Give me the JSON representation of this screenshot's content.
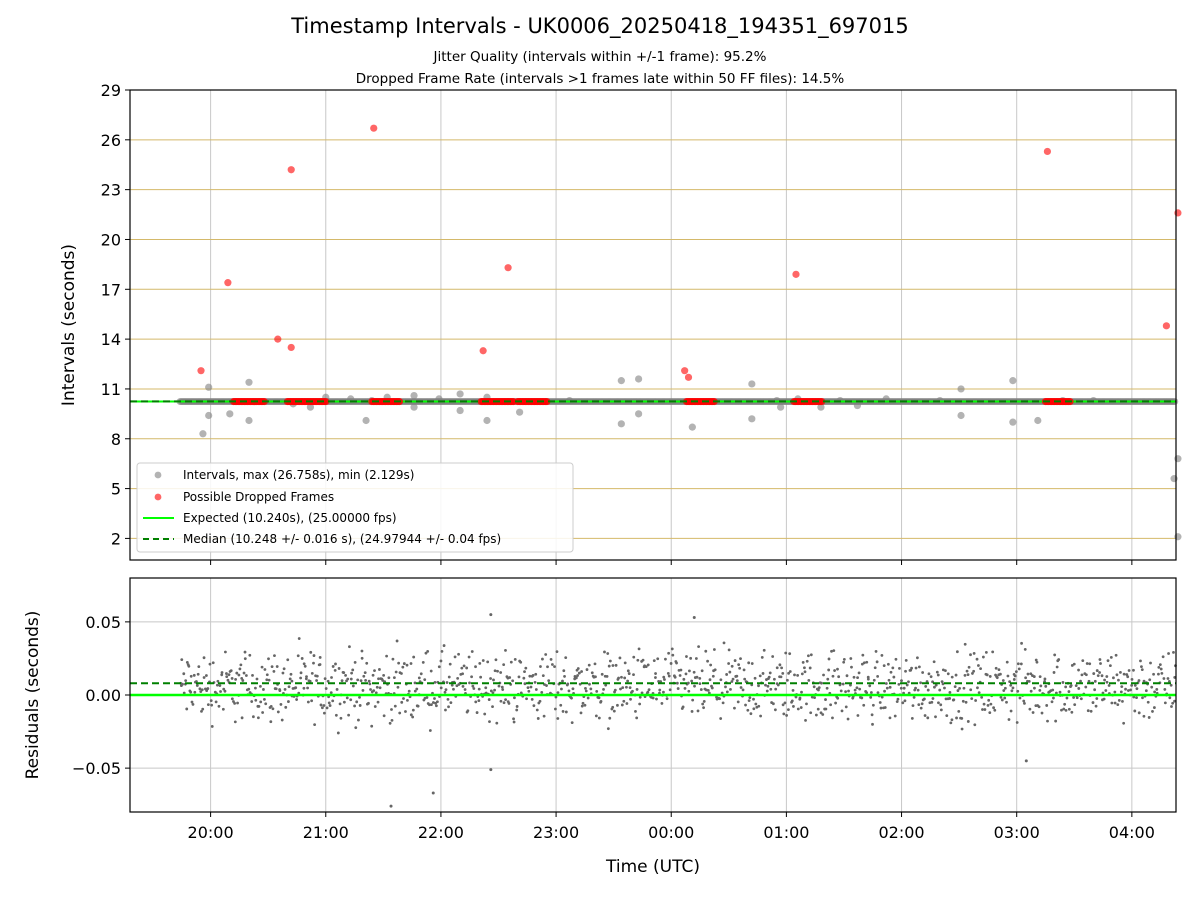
{
  "title": "Timestamp Intervals - UK0006_20250418_194351_697015",
  "subtitle_lines": [
    "Jitter Quality (intervals within +/-1 frame): 95.2%",
    "Dropped Frame Rate (intervals >1 frames late within 50 FF files): 14.5%"
  ],
  "colors": {
    "intervals": "#808080",
    "dropped": "#ff0000",
    "expected": "#00ff00",
    "median": "#008000",
    "hgrid_top": "#d4b96a",
    "vgrid": "#c8c8c8",
    "residual_points": "#666666"
  },
  "chart_data": [
    {
      "type": "scatter",
      "panel": "intervals",
      "xlabel": "",
      "ylabel": "Intervals (seconds)",
      "ylim": [
        0.7,
        29
      ],
      "yticks": [
        2,
        5,
        8,
        11,
        14,
        17,
        20,
        23,
        26,
        29
      ],
      "ytick_labels": [
        "2",
        "5",
        "8",
        "11",
        "14",
        "17",
        "20",
        "23",
        "26",
        "29"
      ],
      "xlim": [
        "19:18",
        "04:23"
      ],
      "xticks": [
        "20:00",
        "21:00",
        "22:00",
        "23:00",
        "00:00",
        "01:00",
        "02:00",
        "03:00",
        "04:00"
      ],
      "grid": "both",
      "legend_placement": "lower-left",
      "series": [
        {
          "name": "Intervals, max (26.758s), min (2.129s)",
          "kind": "points",
          "baseline_span": [
            "19:44",
            "04:23"
          ],
          "baseline_value": 10.24,
          "points": [
            [
              "19:56",
              8.3
            ],
            [
              "19:59",
              9.4
            ],
            [
              "19:59",
              11.1
            ],
            [
              "20:10",
              9.5
            ],
            [
              "20:20",
              9.1
            ],
            [
              "20:20",
              11.4
            ],
            [
              "20:43",
              10.1
            ],
            [
              "20:52",
              9.9
            ],
            [
              "21:00",
              10.5
            ],
            [
              "21:13",
              10.4
            ],
            [
              "21:21",
              9.1
            ],
            [
              "21:24",
              10.3
            ],
            [
              "21:32",
              10.5
            ],
            [
              "21:46",
              9.9
            ],
            [
              "21:46",
              10.6
            ],
            [
              "21:59",
              10.4
            ],
            [
              "22:10",
              9.7
            ],
            [
              "22:10",
              10.7
            ],
            [
              "22:24",
              9.1
            ],
            [
              "22:24",
              10.5
            ],
            [
              "22:41",
              9.6
            ],
            [
              "23:07",
              10.3
            ],
            [
              "23:34",
              11.5
            ],
            [
              "23:34",
              8.9
            ],
            [
              "23:43",
              11.6
            ],
            [
              "23:43",
              9.5
            ],
            [
              "00:11",
              8.7
            ],
            [
              "00:42",
              9.2
            ],
            [
              "00:42",
              11.3
            ],
            [
              "00:55",
              10.3
            ],
            [
              "00:57",
              9.9
            ],
            [
              "01:06",
              10.4
            ],
            [
              "01:18",
              9.9
            ],
            [
              "01:28",
              10.3
            ],
            [
              "01:37",
              10.0
            ],
            [
              "01:52",
              10.4
            ],
            [
              "02:20",
              10.3
            ],
            [
              "02:31",
              9.4
            ],
            [
              "02:31",
              11.0
            ],
            [
              "02:58",
              9.0
            ],
            [
              "02:58",
              11.5
            ],
            [
              "03:11",
              9.1
            ],
            [
              "03:24",
              10.3
            ],
            [
              "03:40",
              10.3
            ],
            [
              "04:22",
              5.6
            ],
            [
              "04:24",
              6.8
            ],
            [
              "04:24",
              2.1
            ]
          ]
        },
        {
          "name": "Possible Dropped Frames",
          "kind": "points",
          "clusters": [
            [
              "20:12",
              "20:28",
              10.24
            ],
            [
              "20:40",
              "21:00",
              10.24
            ],
            [
              "21:24",
              "21:39",
              10.24
            ],
            [
              "22:21",
              "22:38",
              10.24
            ],
            [
              "22:40",
              "22:56",
              10.24
            ],
            [
              "00:08",
              "00:23",
              10.24
            ],
            [
              "01:04",
              "01:19",
              10.24
            ],
            [
              "03:15",
              "03:28",
              10.24
            ]
          ],
          "points": [
            [
              "19:55",
              12.1
            ],
            [
              "20:09",
              17.4
            ],
            [
              "20:35",
              14.0
            ],
            [
              "20:42",
              24.2
            ],
            [
              "20:42",
              13.5
            ],
            [
              "21:25",
              26.7
            ],
            [
              "22:22",
              13.3
            ],
            [
              "22:35",
              18.3
            ],
            [
              "00:07",
              12.1
            ],
            [
              "00:09",
              11.7
            ],
            [
              "01:05",
              17.9
            ],
            [
              "03:16",
              25.3
            ],
            [
              "04:18",
              14.8
            ],
            [
              "04:24",
              21.6
            ]
          ]
        },
        {
          "name": "Expected (10.240s), (25.00000 fps)",
          "kind": "hline",
          "value": 10.24,
          "style": "solid"
        },
        {
          "name": "Median (10.248 +/- 0.016 s), (24.97944 +/- 0.04 fps)",
          "kind": "hline",
          "value": 10.248,
          "style": "dashed"
        }
      ]
    },
    {
      "type": "scatter",
      "panel": "residuals",
      "xlabel": "Time (UTC)",
      "ylabel": "Residuals (seconds)",
      "ylim": [
        -0.08,
        0.08
      ],
      "yticks": [
        -0.05,
        0.0,
        0.05
      ],
      "ytick_labels": [
        "−0.05",
        "0.00",
        "0.05"
      ],
      "xlim": [
        "19:18",
        "04:23"
      ],
      "xticks": [
        "20:00",
        "21:00",
        "22:00",
        "23:00",
        "00:00",
        "01:00",
        "02:00",
        "03:00",
        "04:00"
      ],
      "grid": "both",
      "series": [
        {
          "name": "",
          "kind": "residuals",
          "x_span": [
            "19:44",
            "04:23"
          ],
          "value_range": [
            -0.03,
            0.045
          ],
          "center": 0.008,
          "outliers": [
            [
              "21:34",
              -0.076
            ],
            [
              "21:56",
              -0.067
            ],
            [
              "22:26",
              -0.051
            ],
            [
              "22:26",
              0.055
            ],
            [
              "00:12",
              0.053
            ],
            [
              "03:05",
              -0.045
            ]
          ]
        },
        {
          "name": "",
          "kind": "hline",
          "value": 0.0,
          "style": "solid"
        },
        {
          "name": "",
          "kind": "hline",
          "value": 0.008,
          "style": "dashed"
        }
      ]
    }
  ]
}
